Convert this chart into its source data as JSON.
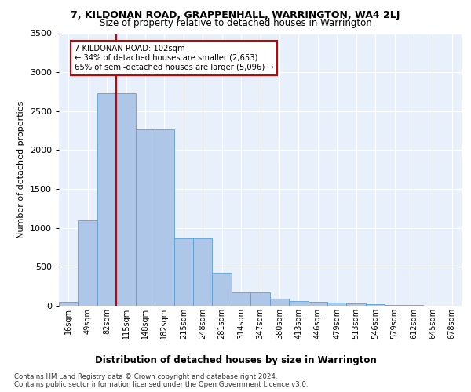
{
  "title1": "7, KILDONAN ROAD, GRAPPENHALL, WARRINGTON, WA4 2LJ",
  "title2": "Size of property relative to detached houses in Warrington",
  "xlabel": "Distribution of detached houses by size in Warrington",
  "ylabel": "Number of detached properties",
  "bar_labels": [
    "16sqm",
    "49sqm",
    "82sqm",
    "115sqm",
    "148sqm",
    "182sqm",
    "215sqm",
    "248sqm",
    "281sqm",
    "314sqm",
    "347sqm",
    "380sqm",
    "413sqm",
    "446sqm",
    "479sqm",
    "513sqm",
    "546sqm",
    "579sqm",
    "612sqm",
    "645sqm",
    "678sqm"
  ],
  "bar_values": [
    50,
    1100,
    2730,
    2730,
    2270,
    2270,
    870,
    870,
    420,
    170,
    170,
    95,
    60,
    55,
    40,
    30,
    25,
    15,
    10,
    5,
    5
  ],
  "bar_color": "#aec6e8",
  "bar_edge_color": "#5a9fd4",
  "vline_x": 2.5,
  "vline_color": "#cc0000",
  "ylim": [
    0,
    3500
  ],
  "yticks": [
    0,
    500,
    1000,
    1500,
    2000,
    2500,
    3000,
    3500
  ],
  "annotation_text": "7 KILDONAN ROAD: 102sqm\n← 34% of detached houses are smaller (2,653)\n65% of semi-detached houses are larger (5,096) →",
  "footer1": "Contains HM Land Registry data © Crown copyright and database right 2024.",
  "footer2": "Contains public sector information licensed under the Open Government Licence v3.0.",
  "bg_color": "#e8f0fb",
  "fig_bg": "#ffffff"
}
